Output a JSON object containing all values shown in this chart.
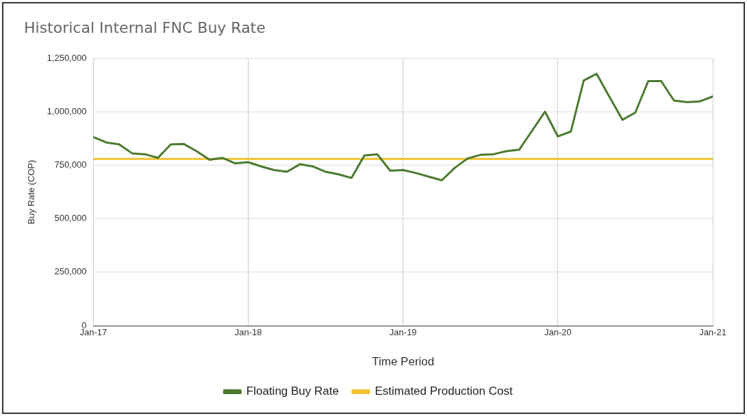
{
  "chart_data": {
    "type": "line",
    "title": "Historical Internal FNC Buy Rate",
    "xlabel": "Time Period",
    "ylabel": "Buy Rate (COP)",
    "x": [
      "2017-01",
      "2017-02",
      "2017-03",
      "2017-04",
      "2017-05",
      "2017-06",
      "2017-07",
      "2017-08",
      "2017-09",
      "2017-10",
      "2017-11",
      "2017-12",
      "2018-01",
      "2018-02",
      "2018-03",
      "2018-04",
      "2018-05",
      "2018-06",
      "2018-07",
      "2018-08",
      "2018-09",
      "2018-10",
      "2018-11",
      "2018-12",
      "2019-01",
      "2019-02",
      "2019-03",
      "2019-04",
      "2019-05",
      "2019-06",
      "2019-07",
      "2019-08",
      "2019-09",
      "2019-10",
      "2019-11",
      "2019-12",
      "2020-01",
      "2020-02",
      "2020-03",
      "2020-04",
      "2020-05",
      "2020-06",
      "2020-07",
      "2020-08",
      "2020-09",
      "2020-10",
      "2020-11",
      "2020-12",
      "2021-01"
    ],
    "series": [
      {
        "name": "Floating Buy Rate",
        "color": "#4a7a2e",
        "values": [
          882000,
          857000,
          848000,
          806000,
          802000,
          785000,
          848000,
          850000,
          816000,
          776000,
          785000,
          759000,
          765000,
          745000,
          728000,
          720000,
          755000,
          745000,
          720000,
          708000,
          691000,
          796000,
          802000,
          725000,
          728000,
          714000,
          697000,
          680000,
          738000,
          782000,
          799000,
          802000,
          816000,
          823000,
          912000,
          1001000,
          885000,
          908000,
          1147000,
          1178000,
          1070000,
          963000,
          997000,
          1144000,
          1144000,
          1053000,
          1046000,
          1049000,
          1072000
        ]
      },
      {
        "name": "Estimated Production Cost",
        "color": "#f2c232",
        "values": [
          780000,
          780000,
          780000,
          780000,
          780000,
          780000,
          780000,
          780000,
          780000,
          780000,
          780000,
          780000,
          780000,
          780000,
          780000,
          780000,
          780000,
          780000,
          780000,
          780000,
          780000,
          780000,
          780000,
          780000,
          780000,
          780000,
          780000,
          780000,
          780000,
          780000,
          780000,
          780000,
          780000,
          780000,
          780000,
          780000,
          780000,
          780000,
          780000,
          780000,
          780000,
          780000,
          780000,
          780000,
          780000,
          780000,
          780000,
          780000,
          780000
        ]
      }
    ],
    "xlim": [
      "2017-01",
      "2021-01"
    ],
    "xticks": [
      {
        "value": "2017-01",
        "label": "Jan-17"
      },
      {
        "value": "2018-01",
        "label": "Jan-18"
      },
      {
        "value": "2019-01",
        "label": "Jan-19"
      },
      {
        "value": "2020-01",
        "label": "Jan-20"
      },
      {
        "value": "2021-01",
        "label": "Jan-21"
      }
    ],
    "ylim": [
      0,
      1250000
    ],
    "yticks": [
      0,
      {
        "value": 250000,
        "label": "250,000"
      },
      {
        "value": 500000,
        "label": "500,000"
      },
      {
        "value": 750000,
        "label": "750,000"
      },
      {
        "value": 1000000,
        "label": "1,000,000"
      },
      {
        "value": 1250000,
        "label": "1,250,000"
      }
    ],
    "grid": true,
    "legend": "bottom",
    "marker": "none",
    "line_style": "solid"
  }
}
